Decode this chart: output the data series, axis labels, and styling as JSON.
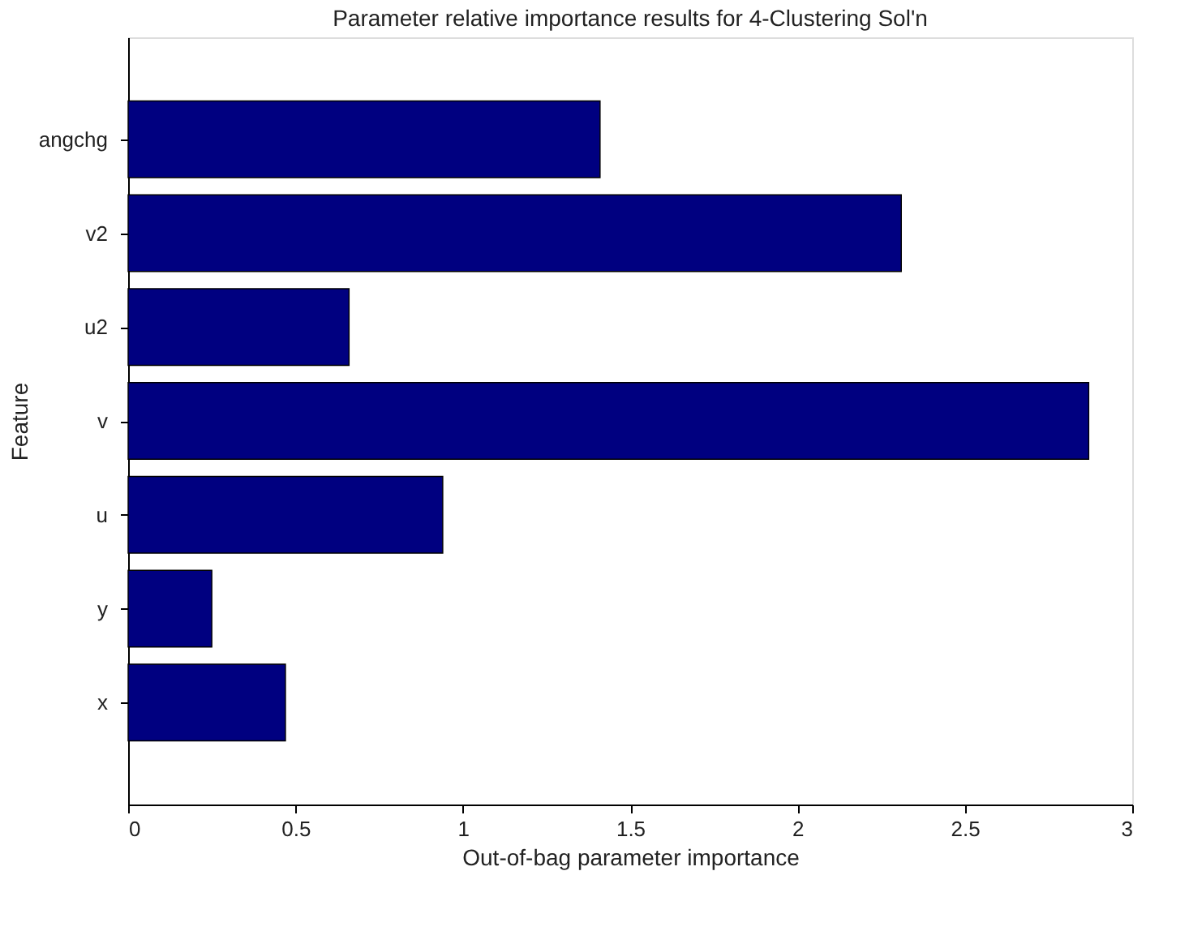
{
  "chart_data": {
    "type": "bar",
    "orientation": "horizontal",
    "title": "Parameter relative importance results for 4-Clustering Sol'n",
    "xlabel": "Out-of-bag parameter importance",
    "ylabel": "Feature",
    "categories": [
      "angchg",
      "v2",
      "u2",
      "v",
      "u",
      "y",
      "x"
    ],
    "values": [
      1.41,
      2.31,
      0.66,
      2.87,
      0.94,
      0.25,
      0.47
    ],
    "color": "#000080",
    "xlim": [
      0,
      3
    ],
    "xticks": [
      0,
      0.5,
      1,
      1.5,
      2,
      2.5,
      3
    ],
    "grid": false
  }
}
